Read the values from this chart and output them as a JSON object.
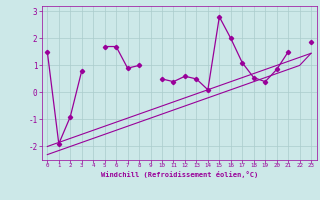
{
  "x": [
    0,
    1,
    2,
    3,
    4,
    5,
    6,
    7,
    8,
    9,
    10,
    11,
    12,
    13,
    14,
    15,
    16,
    17,
    18,
    19,
    20,
    21,
    22,
    23
  ],
  "y_main": [
    1.5,
    -1.9,
    -0.9,
    0.8,
    null,
    1.7,
    1.7,
    0.9,
    1.0,
    null,
    0.5,
    0.4,
    0.6,
    0.5,
    0.1,
    2.8,
    2.0,
    1.1,
    0.55,
    0.4,
    0.85,
    1.5,
    null,
    1.85
  ],
  "trend_upper": [
    -2.0,
    -1.85,
    -1.7,
    -1.55,
    -1.4,
    -1.25,
    -1.1,
    -0.95,
    -0.8,
    -0.65,
    -0.5,
    -0.35,
    -0.2,
    -0.05,
    0.1,
    0.25,
    0.4,
    0.55,
    0.7,
    0.85,
    1.0,
    1.15,
    1.3,
    1.45
  ],
  "trend_lower": [
    -2.3,
    -2.15,
    -2.0,
    -1.85,
    -1.7,
    -1.55,
    -1.4,
    -1.25,
    -1.1,
    -0.95,
    -0.8,
    -0.65,
    -0.5,
    -0.35,
    -0.2,
    -0.05,
    0.1,
    0.25,
    0.4,
    0.55,
    0.7,
    0.85,
    1.0,
    1.45
  ],
  "color": "#990099",
  "bg_color": "#cce8e8",
  "grid_color": "#aacccc",
  "ylim": [
    -2.5,
    3.2
  ],
  "xlim": [
    -0.5,
    23.5
  ],
  "yticks": [
    -2,
    -1,
    0,
    1,
    2,
    3
  ],
  "xticks": [
    0,
    1,
    2,
    3,
    4,
    5,
    6,
    7,
    8,
    9,
    10,
    11,
    12,
    13,
    14,
    15,
    16,
    17,
    18,
    19,
    20,
    21,
    22,
    23
  ],
  "xlabel": "Windchill (Refroidissement éolien,°C)"
}
